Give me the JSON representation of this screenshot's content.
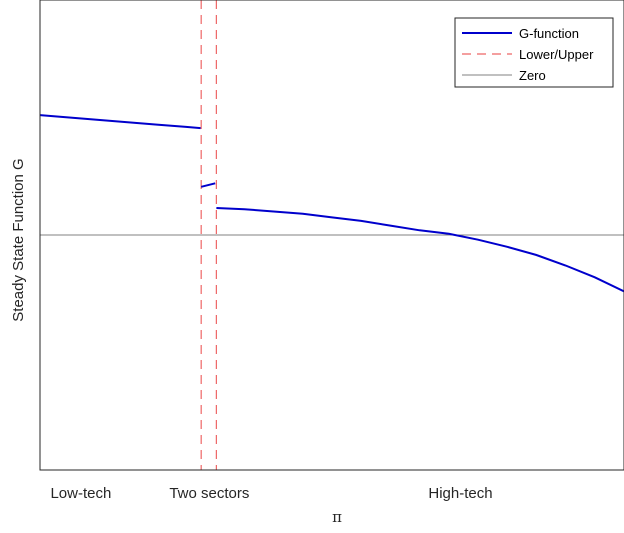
{
  "colors": {
    "g_function": "#0000cc",
    "bounds": "#ee6666",
    "zero": "#808080",
    "axes": "#262626",
    "legend_border": "#262626"
  },
  "chart_data": {
    "type": "line",
    "title": "",
    "xlabel": "π",
    "ylabel": "Steady State Function G",
    "xlim": [
      0,
      1
    ],
    "ylim": [
      -1,
      1
    ],
    "xtick_values": [],
    "ytick_values": [],
    "grid": false,
    "legend_position": "top-right",
    "region_labels": [
      {
        "text": "Low-tech",
        "x": 0.07
      },
      {
        "text": "Two sectors",
        "x": 0.29
      },
      {
        "text": "High-tech",
        "x": 0.72
      }
    ],
    "series": [
      {
        "name": "G-function",
        "style": "solid",
        "segments": [
          [
            [
              0.0,
              0.51
            ],
            [
              0.05,
              0.5
            ],
            [
              0.1,
              0.49
            ],
            [
              0.15,
              0.48
            ],
            [
              0.2,
              0.47
            ],
            [
              0.25,
              0.46
            ],
            [
              0.275,
              0.455
            ]
          ],
          [
            [
              0.276,
              0.205
            ],
            [
              0.3,
              0.22
            ]
          ],
          [
            [
              0.302,
              0.115
            ],
            [
              0.35,
              0.11
            ],
            [
              0.4,
              0.1
            ],
            [
              0.45,
              0.09
            ],
            [
              0.5,
              0.075
            ],
            [
              0.55,
              0.06
            ],
            [
              0.6,
              0.04
            ],
            [
              0.65,
              0.02
            ],
            [
              0.7,
              0.005
            ],
            [
              0.75,
              -0.02
            ],
            [
              0.8,
              -0.05
            ],
            [
              0.85,
              -0.085
            ],
            [
              0.9,
              -0.13
            ],
            [
              0.95,
              -0.18
            ],
            [
              1.0,
              -0.24
            ]
          ]
        ]
      },
      {
        "name": "Lower/Upper",
        "style": "dashed",
        "x_positions": [
          0.276,
          0.302
        ]
      },
      {
        "name": "Zero",
        "style": "solid",
        "y_value": 0
      }
    ]
  }
}
